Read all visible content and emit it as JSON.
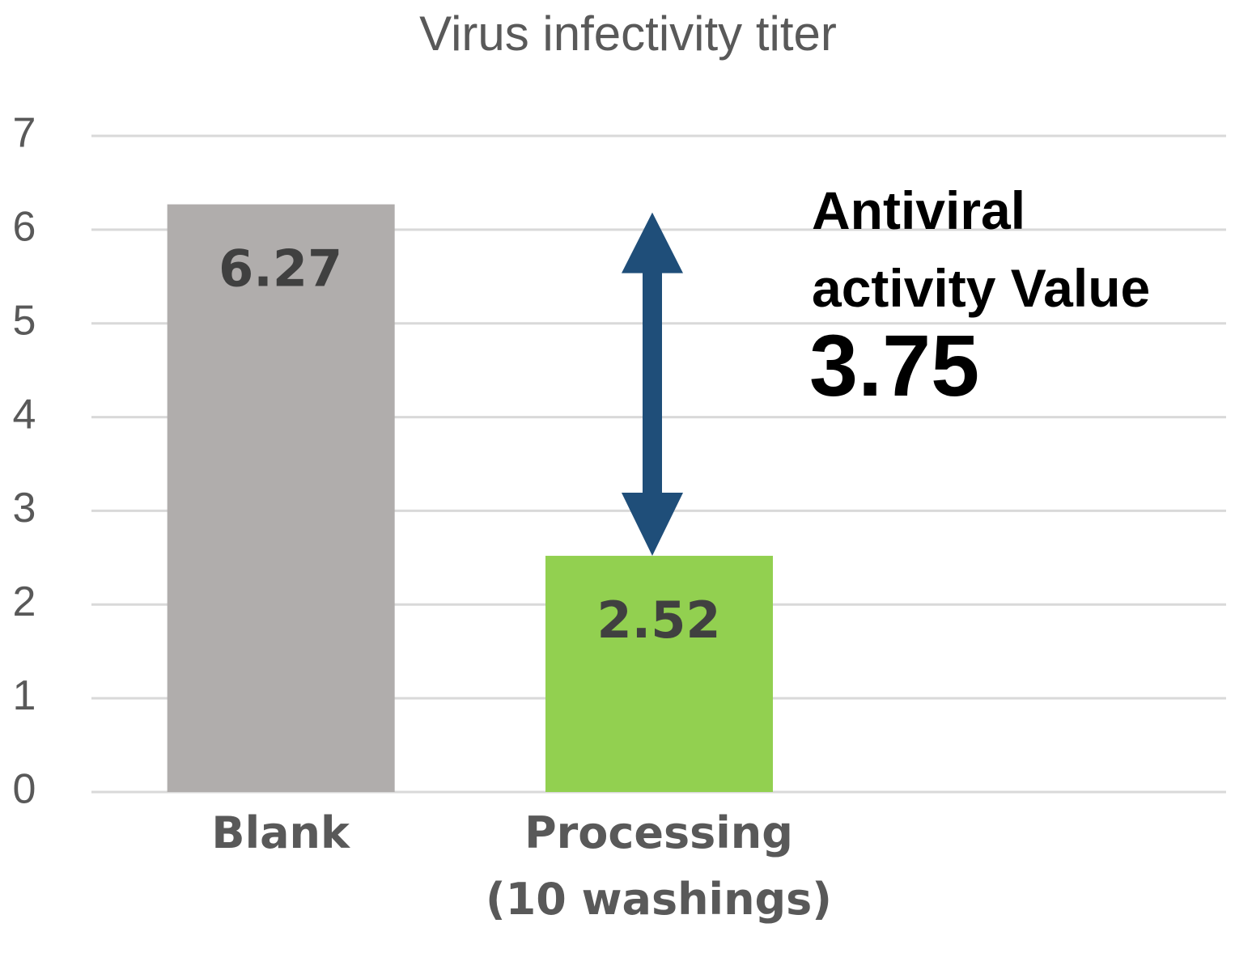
{
  "chart_data": {
    "type": "bar",
    "title": "Virus infectivity titer",
    "categories": [
      "Blank",
      "Processing\n(10 washings)",
      null
    ],
    "values": [
      6.27,
      2.52,
      null
    ],
    "colors": [
      "#b0adac",
      "#92d050",
      null
    ],
    "ylim": [
      0,
      7
    ],
    "yticks": [
      0,
      1,
      2,
      3,
      4,
      5,
      6,
      7
    ],
    "grid": true,
    "annotation": {
      "text": "Antiviral\nactivity Value",
      "value": 3.75,
      "color": "#1f4e79"
    }
  }
}
